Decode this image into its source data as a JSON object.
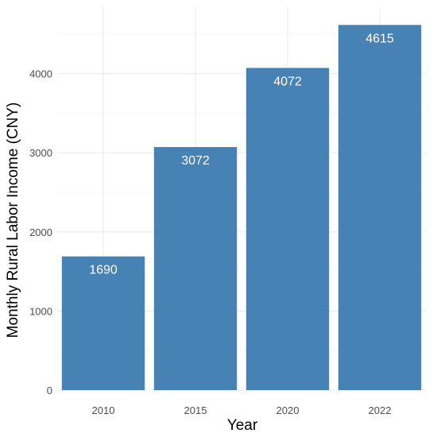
{
  "chart_data": {
    "type": "bar",
    "title": "",
    "xlabel": "Year",
    "ylabel": "Monthly Rural Labor Income (CNY)",
    "categories": [
      "2010",
      "2015",
      "2020",
      "2022"
    ],
    "values": [
      1690,
      3072,
      4072,
      4615
    ],
    "data_labels": [
      "1690",
      "3072",
      "4072",
      "4615"
    ],
    "ylim": [
      0,
      4850
    ],
    "yticks": [
      0,
      1000,
      2000,
      3000,
      4000
    ],
    "ytick_labels": [
      "0",
      "1000",
      "2000",
      "3000",
      "4000"
    ],
    "grid": true,
    "legend": "none",
    "colors": {
      "bar": "#4682b4",
      "label": "#ffffff",
      "grid": "#ebebeb"
    }
  }
}
